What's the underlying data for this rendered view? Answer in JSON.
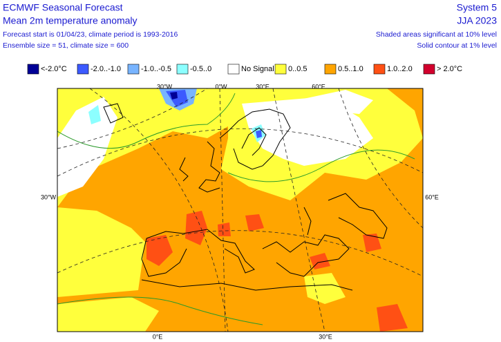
{
  "header": {
    "left": [
      "ECMWF Seasonal Forecast",
      "Mean 2m temperature anomaly",
      "Forecast start is 01/04/23, climate period is 1993-2016",
      "Ensemble size = 51, climate size = 600"
    ],
    "right": [
      "System 5",
      "JJA 2023",
      "Shaded areas significant at 10% level",
      "Solid contour at 1% level"
    ]
  },
  "legend": [
    {
      "label": "<-2.0°C",
      "color": "#000096"
    },
    {
      "label": "-2.0..-1.0",
      "color": "#3c5aff"
    },
    {
      "label": "-1.0..-0.5",
      "color": "#78b4ff"
    },
    {
      "label": "-0.5..0",
      "color": "#8cffff"
    },
    {
      "label": "No Signal",
      "color": "#ffffff"
    },
    {
      "label": "0..0.5",
      "color": "#ffff3c"
    },
    {
      "label": "0.5..1.0",
      "color": "#ffa500"
    },
    {
      "label": "1.0..2.0",
      "color": "#ff5014"
    },
    {
      "label": "> 2.0°C",
      "color": "#d2002d"
    }
  ],
  "graticule_labels": {
    "top": [
      "30°W",
      "0°W",
      "30°E",
      "60°E"
    ],
    "left": [
      "30°W"
    ],
    "right": [
      "60°E"
    ],
    "bottom": [
      "0°E",
      "30°E"
    ]
  }
}
